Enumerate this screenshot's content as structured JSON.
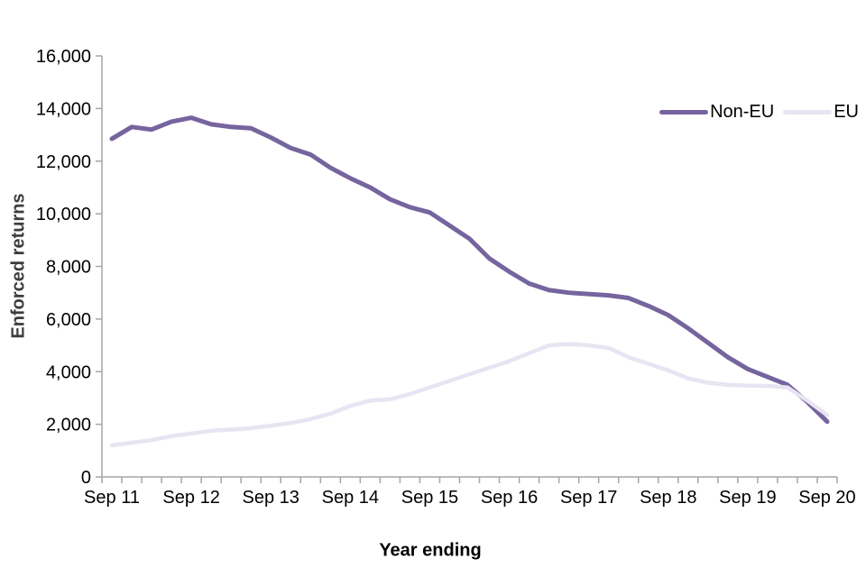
{
  "chart_data": {
    "type": "line",
    "title": "",
    "ylabel": "Enforced returns",
    "xlabel": "Year ending",
    "ylim": [
      0,
      16000
    ],
    "ytick_step": 2000,
    "ytick_labels": [
      "0",
      "2,000",
      "4,000",
      "6,000",
      "8,000",
      "10,000",
      "12,000",
      "14,000",
      "16,000"
    ],
    "x_major_labels": [
      "Sep 11",
      "Sep 12",
      "Sep 13",
      "Sep 14",
      "Sep 15",
      "Sep 16",
      "Sep 17",
      "Sep 18",
      "Sep 19",
      "Sep 20"
    ],
    "x_label_every": 4,
    "minor_tick_interval": "quarterly",
    "grid": false,
    "legend_position": "top-right",
    "series": [
      {
        "name": "Non-EU",
        "color": "#76649e",
        "values": [
          12850,
          13300,
          13200,
          13500,
          13650,
          13400,
          13300,
          13250,
          12900,
          12500,
          12250,
          11750,
          11350,
          11000,
          10550,
          10250,
          10050,
          9550,
          9050,
          8300,
          7800,
          7350,
          7100,
          7000,
          6950,
          6900,
          6800,
          6500,
          6150,
          5650,
          5100,
          4550,
          4100,
          3800,
          3500,
          2850,
          2100
        ]
      },
      {
        "name": "EU",
        "color": "#e8e4f2",
        "values": [
          1200,
          1300,
          1400,
          1550,
          1650,
          1750,
          1800,
          1850,
          1950,
          2050,
          2200,
          2400,
          2700,
          2900,
          2950,
          3150,
          3400,
          3650,
          3900,
          4150,
          4400,
          4700,
          5000,
          5050,
          5000,
          4900,
          4550,
          4300,
          4050,
          3750,
          3580,
          3500,
          3470,
          3460,
          3400,
          2900,
          2350
        ]
      }
    ]
  },
  "colors": {
    "axis": "#a6a6a6",
    "tick_label": "#000000",
    "y_axis_title": "#3d3d3d",
    "x_axis_title": "#000000"
  }
}
